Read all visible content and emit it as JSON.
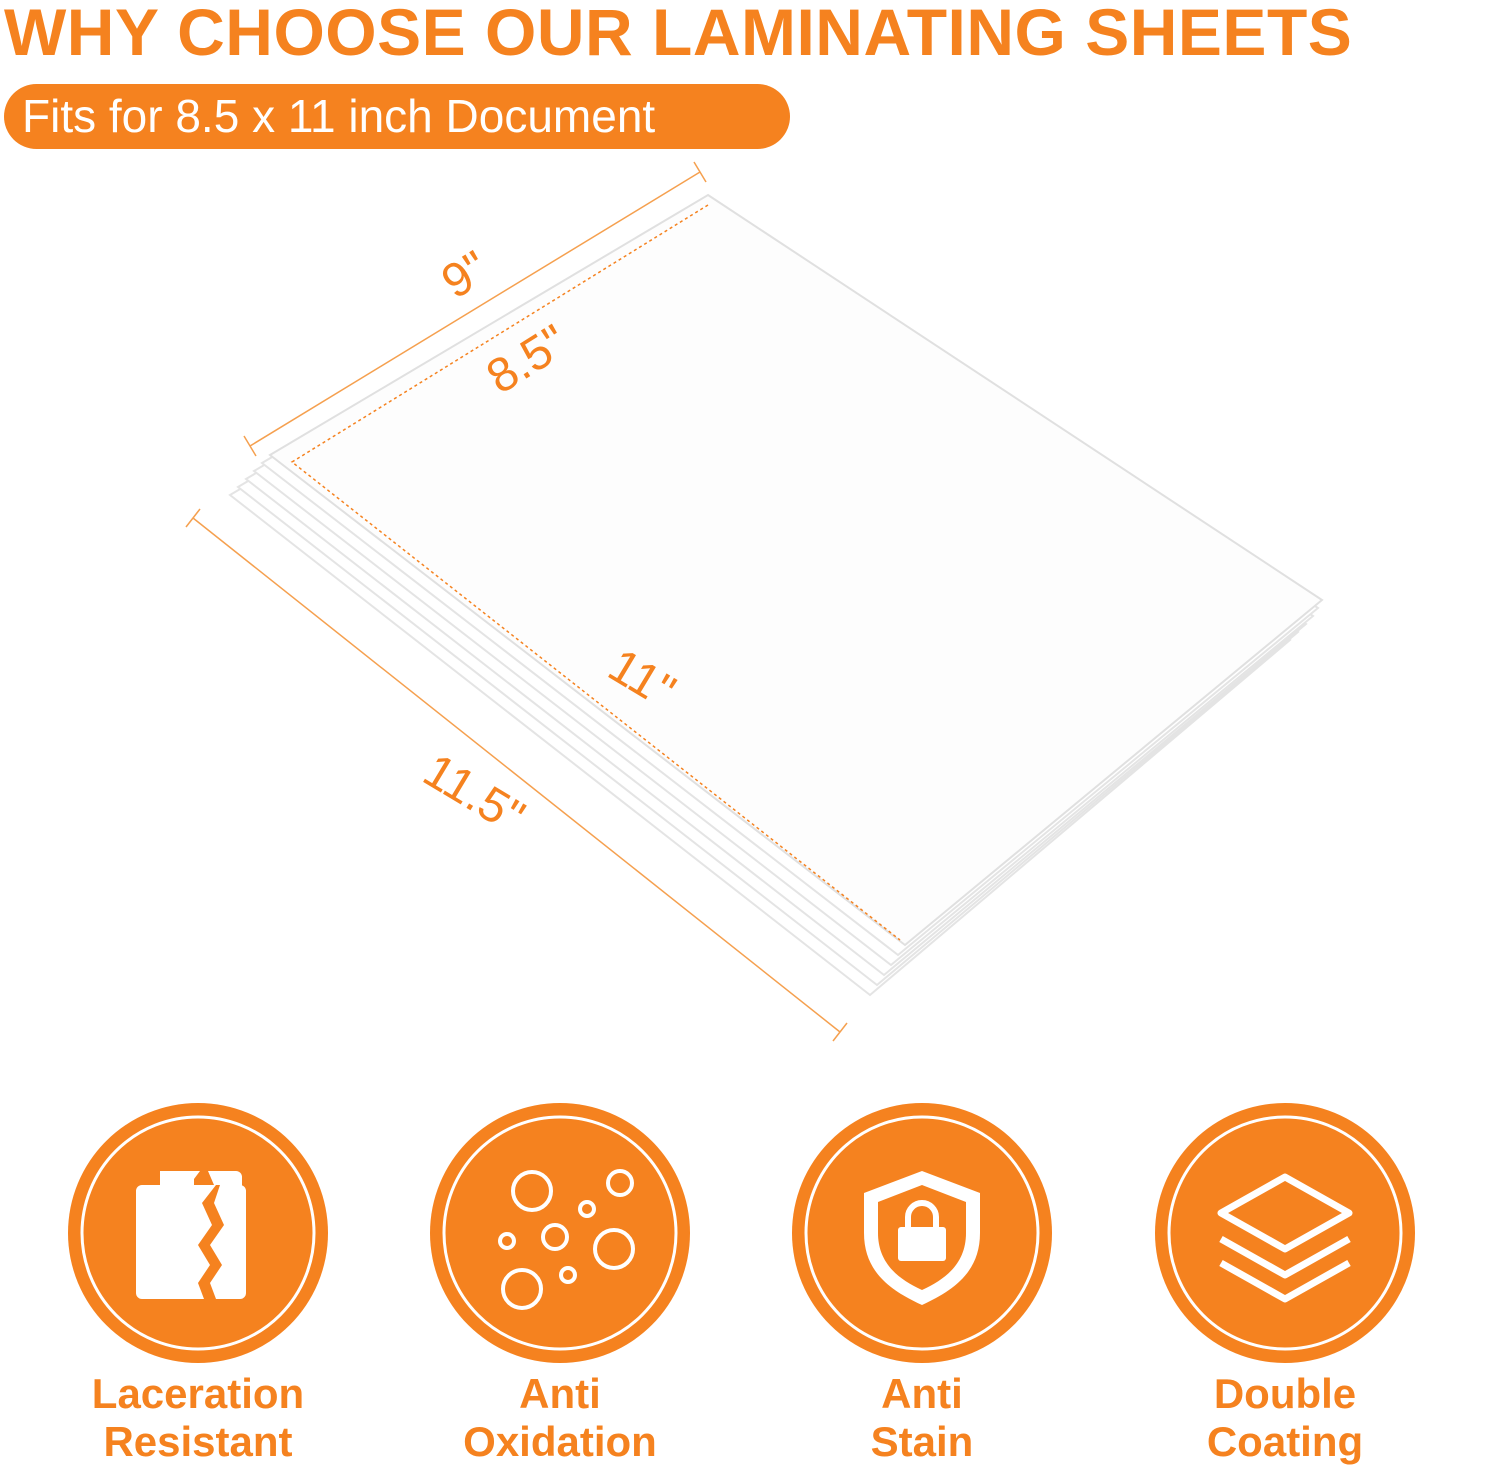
{
  "header": {
    "title": "WHY CHOOSE OUR LAMINATING SHEETS",
    "subtitle": "Fits for 8.5 x 11 inch Document"
  },
  "dimensions": {
    "sheet_width": "9\"",
    "paper_width": "8.5\"",
    "paper_length": "11\"",
    "sheet_length": "11.5\""
  },
  "colors": {
    "accent": "#F5821F",
    "background": "#FFFFFF"
  },
  "features": [
    {
      "icon": "torn-sheet-icon",
      "line1": "Laceration",
      "line2": "Resistant"
    },
    {
      "icon": "bubbles-icon",
      "line1": "Anti",
      "line2": "Oxidation"
    },
    {
      "icon": "shield-lock-icon",
      "line1": "Anti",
      "line2": "Stain"
    },
    {
      "icon": "layers-icon",
      "line1": "Double",
      "line2": "Coating"
    }
  ]
}
